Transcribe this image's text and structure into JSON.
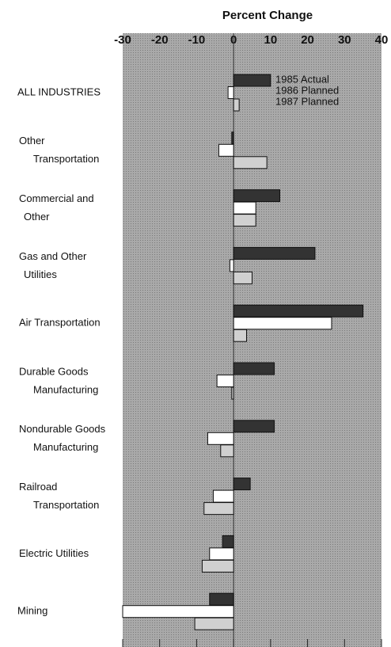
{
  "chart_data": {
    "type": "bar",
    "orientation": "horizontal",
    "xlabel": "Percent Change",
    "categories": [
      [
        "ALL INDUSTRIES"
      ],
      [
        "Other",
        "Transportation"
      ],
      [
        "Commercial and",
        "Other"
      ],
      [
        "Gas and Other",
        "Utilities"
      ],
      [
        "Air Transportation"
      ],
      [
        "Durable Goods",
        "Manufacturing"
      ],
      [
        "Nondurable Goods",
        "Manufacturing"
      ],
      [
        "Railroad",
        "Transportation"
      ],
      [
        "Electric Utilities"
      ],
      [
        "Mining"
      ]
    ],
    "series": [
      {
        "name": "1985 Actual",
        "color": "#333333",
        "values": [
          10,
          -0.5,
          12.5,
          22,
          35,
          11,
          11,
          4.5,
          -3,
          -6.5
        ]
      },
      {
        "name": "1986 Planned",
        "color": "#ffffff",
        "values": [
          -1.5,
          -4,
          6,
          -1,
          26.5,
          -4.5,
          -7,
          -5.5,
          -6.5,
          -30
        ]
      },
      {
        "name": "1987 Planned",
        "color": "#d0d0d0",
        "values": [
          1.5,
          9,
          6,
          5,
          3.5,
          -0.5,
          -3.5,
          -8,
          -8.5,
          -10.5
        ]
      }
    ],
    "xlim": [
      -30,
      40
    ],
    "xticks": [
      -30,
      -20,
      -10,
      0,
      10,
      20,
      30,
      40
    ]
  }
}
